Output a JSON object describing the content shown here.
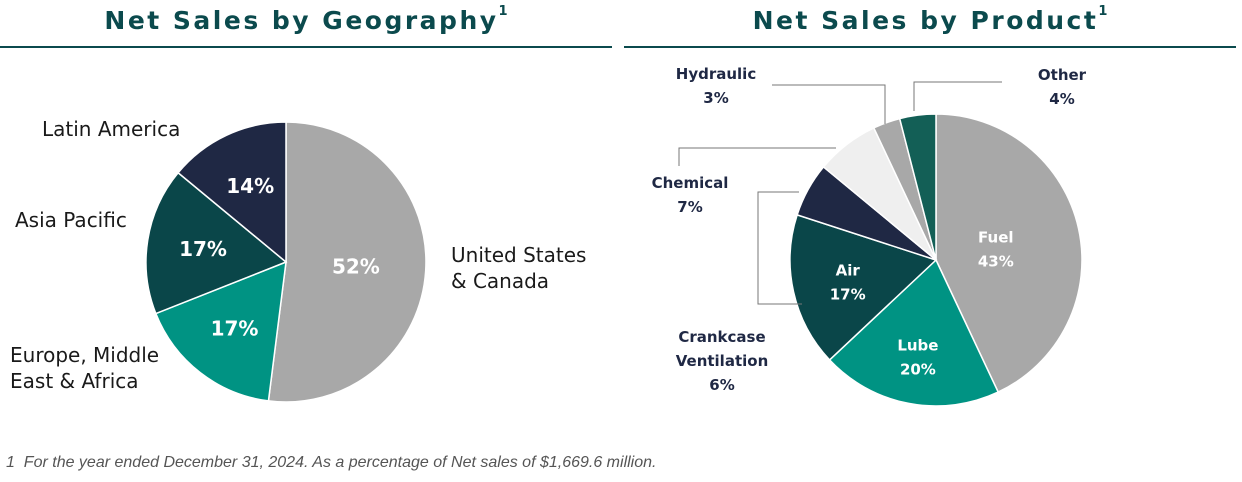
{
  "footnote": {
    "marker": "1",
    "text": "For the year ended December 31, 2024. As a percentage of Net sales of $1,669.6 million."
  },
  "colors": {
    "title": "#0b4a4d",
    "gray": "#a8a8a8",
    "teal": "#009383",
    "dark_teal": "#0a4649",
    "navy": "#1f2844",
    "light_gray": "#efefef",
    "green": "#135f56",
    "label_text": "#1a1a1a",
    "label_dark": "#1f2844"
  },
  "chart_data": [
    {
      "type": "pie",
      "title": "Net Sales by Geography",
      "title_superscript": "1",
      "unit": "%",
      "slices": [
        {
          "name": "United States & Canada",
          "label_lines": [
            "United States",
            "& Canada"
          ],
          "value": 52,
          "value_label": "52%",
          "color": "#a8a8a8"
        },
        {
          "name": "Europe, Middle East & Africa",
          "label_lines": [
            "Europe, Middle",
            "East & Africa"
          ],
          "value": 17,
          "value_label": "17%",
          "color": "#009383"
        },
        {
          "name": "Asia Pacific",
          "label_lines": [
            "Asia Pacific"
          ],
          "value": 17,
          "value_label": "17%",
          "color": "#0a4649"
        },
        {
          "name": "Latin America",
          "label_lines": [
            "Latin America"
          ],
          "value": 14,
          "value_label": "14%",
          "color": "#1f2844"
        }
      ]
    },
    {
      "type": "pie",
      "title": "Net Sales by Product",
      "title_superscript": "1",
      "unit": "%",
      "slices": [
        {
          "name": "Fuel",
          "label_lines": [
            "Fuel"
          ],
          "value": 43,
          "value_label": "43%",
          "color": "#a8a8a8",
          "label_inside": true
        },
        {
          "name": "Lube",
          "label_lines": [
            "Lube"
          ],
          "value": 20,
          "value_label": "20%",
          "color": "#009383",
          "label_inside": true
        },
        {
          "name": "Air",
          "label_lines": [
            "Air"
          ],
          "value": 17,
          "value_label": "17%",
          "color": "#0a4649",
          "label_inside": true
        },
        {
          "name": "Crankcase Ventilation",
          "label_lines": [
            "Crankcase",
            "Ventilation"
          ],
          "value": 6,
          "value_label": "6%",
          "color": "#1f2844",
          "label_inside": false
        },
        {
          "name": "Chemical",
          "label_lines": [
            "Chemical"
          ],
          "value": 7,
          "value_label": "7%",
          "color": "#efefef",
          "label_inside": false
        },
        {
          "name": "Hydraulic",
          "label_lines": [
            "Hydraulic"
          ],
          "value": 3,
          "value_label": "3%",
          "color": "#a8a8a8",
          "label_inside": false
        },
        {
          "name": "Other",
          "label_lines": [
            "Other"
          ],
          "value": 4,
          "value_label": "4%",
          "color": "#135f56",
          "label_inside": false
        }
      ]
    }
  ]
}
